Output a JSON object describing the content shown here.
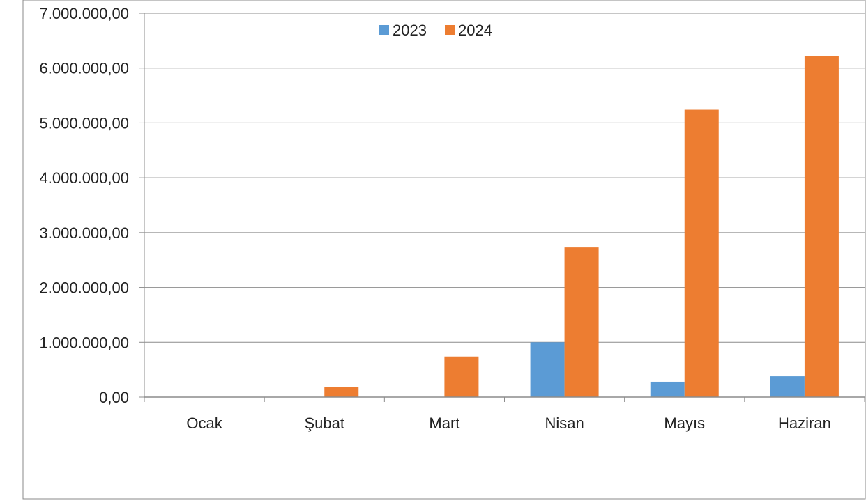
{
  "chart_data": {
    "type": "bar",
    "categories": [
      "Ocak",
      "Şubat",
      "Mart",
      "Nisan",
      "Mayıs",
      "Haziran"
    ],
    "series": [
      {
        "name": "2023",
        "color": "#5b9bd5",
        "values": [
          0,
          0,
          0,
          1000000,
          280000,
          380000
        ]
      },
      {
        "name": "2024",
        "color": "#ed7d31",
        "values": [
          0,
          190000,
          740000,
          2730000,
          5240000,
          6220000
        ]
      }
    ],
    "ylim": [
      0,
      7000000
    ],
    "yticks": [
      0,
      1000000,
      2000000,
      3000000,
      4000000,
      5000000,
      6000000,
      7000000
    ],
    "ytick_labels": [
      "0,00",
      "1.000.000,00",
      "2.000.000,00",
      "3.000.000,00",
      "4.000.000,00",
      "5.000.000,00",
      "6.000.000,00",
      "7.000.000,00"
    ],
    "grid": true,
    "legend_position": "top-center",
    "title": "",
    "xlabel": "",
    "ylabel": ""
  }
}
